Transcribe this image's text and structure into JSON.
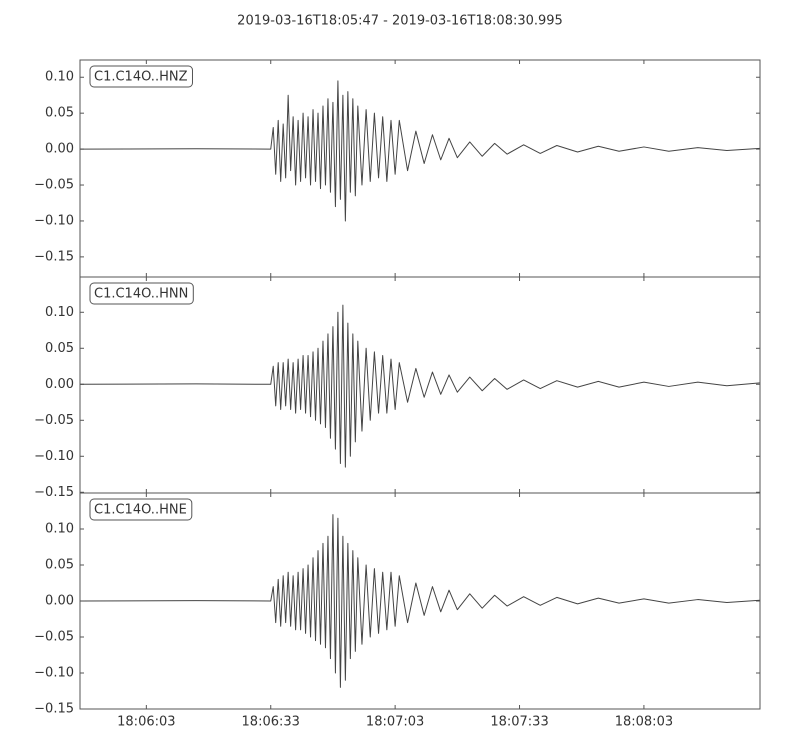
{
  "title": "2019-03-16T18:05:47  -  2019-03-16T18:08:30.995",
  "chart_data": [
    {
      "type": "line",
      "label": "C1.C14O..HNZ",
      "color": "#444444",
      "x": [
        65147,
        65175,
        65193,
        65193.6,
        65194.2,
        65194.8,
        65195.4,
        65196,
        65196.6,
        65197.2,
        65197.8,
        65198.4,
        65199,
        65199.6,
        65200.2,
        65200.8,
        65201.4,
        65202,
        65202.6,
        65203.2,
        65203.8,
        65204.4,
        65205,
        65205.6,
        65206.2,
        65206.8,
        65207.4,
        65208,
        65208.6,
        65209.2,
        65209.8,
        65210.4,
        65211,
        65211.6,
        65212.2,
        65212.8,
        65213.4,
        65214,
        65215,
        65216,
        65217,
        65218,
        65219,
        65220,
        65221,
        65222,
        65223,
        65224,
        65226,
        65228,
        65230,
        65232,
        65234,
        65236,
        65238,
        65241,
        65244,
        65247,
        65250,
        65254,
        65258,
        65262,
        65267,
        65272,
        65277,
        65283,
        65289,
        65296,
        65303,
        65310.995
      ],
      "values": [
        0,
        0.0005,
        0,
        0.03,
        -0.035,
        0.04,
        -0.045,
        0.035,
        -0.04,
        0.075,
        -0.03,
        0.045,
        -0.05,
        0.04,
        -0.045,
        0.05,
        -0.04,
        0.045,
        -0.05,
        0.055,
        -0.045,
        0.05,
        -0.055,
        0.06,
        -0.05,
        0.07,
        -0.06,
        0.065,
        -0.08,
        0.095,
        -0.07,
        0.075,
        -0.1,
        0.08,
        -0.06,
        0.07,
        -0.065,
        0.06,
        -0.05,
        0.055,
        -0.045,
        0.05,
        -0.04,
        0.045,
        -0.045,
        0.04,
        -0.035,
        0.04,
        -0.03,
        0.025,
        -0.02,
        0.02,
        -0.015,
        0.015,
        -0.012,
        0.01,
        -0.01,
        0.008,
        -0.007,
        0.006,
        -0.006,
        0.005,
        -0.004,
        0.004,
        -0.003,
        0.003,
        -0.003,
        0.002,
        -0.002,
        0.001
      ],
      "xlim": [
        65147,
        65310.995
      ],
      "ylim": [
        -0.178,
        0.124
      ],
      "yticks": [
        {
          "value": 0.1,
          "label": "0.10"
        },
        {
          "value": 0.05,
          "label": "0.05"
        },
        {
          "value": 0,
          "label": "0.00"
        },
        {
          "value": -0.05,
          "label": "−0.05"
        },
        {
          "value": -0.1,
          "label": "−0.10"
        },
        {
          "value": -0.15,
          "label": "−0.15"
        }
      ]
    },
    {
      "type": "line",
      "label": "C1.C14O..HNN",
      "color": "#444444",
      "x": [
        65147,
        65175,
        65193,
        65193.6,
        65194.2,
        65194.8,
        65195.4,
        65196,
        65196.6,
        65197.2,
        65197.8,
        65198.4,
        65199,
        65199.6,
        65200.2,
        65200.8,
        65201.4,
        65202,
        65202.6,
        65203.2,
        65203.8,
        65204.4,
        65205,
        65205.6,
        65206.2,
        65206.8,
        65207.4,
        65208,
        65208.6,
        65209.2,
        65209.8,
        65210.4,
        65211,
        65211.6,
        65212.2,
        65212.8,
        65213.4,
        65214,
        65215,
        65216,
        65217,
        65218,
        65219,
        65220,
        65221,
        65222,
        65223,
        65224,
        65226,
        65228,
        65230,
        65232,
        65234,
        65236,
        65238,
        65241,
        65244,
        65247,
        65250,
        65254,
        65258,
        65262,
        65267,
        65272,
        65277,
        65283,
        65289,
        65296,
        65303,
        65310.995
      ],
      "values": [
        0,
        0.0005,
        0,
        0.025,
        -0.03,
        0.03,
        -0.035,
        0.03,
        -0.03,
        0.035,
        -0.035,
        0.03,
        -0.04,
        0.035,
        -0.035,
        0.04,
        -0.04,
        0.04,
        -0.045,
        0.045,
        -0.05,
        0.05,
        -0.055,
        0.06,
        -0.06,
        0.07,
        -0.075,
        0.08,
        -0.09,
        0.1,
        -0.11,
        0.11,
        -0.115,
        0.085,
        -0.1,
        0.07,
        -0.08,
        0.06,
        -0.065,
        0.05,
        -0.05,
        0.045,
        -0.04,
        0.04,
        -0.04,
        0.035,
        -0.035,
        0.03,
        -0.025,
        0.022,
        -0.018,
        0.017,
        -0.014,
        0.013,
        -0.011,
        0.01,
        -0.009,
        0.008,
        -0.007,
        0.006,
        -0.006,
        0.005,
        -0.004,
        0.004,
        -0.004,
        0.003,
        -0.003,
        0.003,
        -0.002,
        0.002
      ],
      "xlim": [
        65147,
        65310.995
      ],
      "ylim": [
        -0.151,
        0.149
      ],
      "yticks": [
        {
          "value": 0.1,
          "label": "0.10"
        },
        {
          "value": 0.05,
          "label": "0.05"
        },
        {
          "value": 0,
          "label": "0.00"
        },
        {
          "value": -0.05,
          "label": "−0.05"
        },
        {
          "value": -0.1,
          "label": "−0.10"
        },
        {
          "value": -0.15,
          "label": "−0.15"
        }
      ]
    },
    {
      "type": "line",
      "label": "C1.C14O..HNE",
      "color": "#444444",
      "x": [
        65147,
        65175,
        65193,
        65193.6,
        65194.2,
        65194.8,
        65195.4,
        65196,
        65196.6,
        65197.2,
        65197.8,
        65198.4,
        65199,
        65199.6,
        65200.2,
        65200.8,
        65201.4,
        65202,
        65202.6,
        65203.2,
        65203.8,
        65204.4,
        65205,
        65205.6,
        65206.2,
        65206.8,
        65207.4,
        65208,
        65208.6,
        65209.2,
        65209.8,
        65210.4,
        65211,
        65211.6,
        65212.2,
        65212.8,
        65213.4,
        65214,
        65215,
        65216,
        65217,
        65218,
        65219,
        65220,
        65221,
        65222,
        65223,
        65224,
        65226,
        65228,
        65230,
        65232,
        65234,
        65236,
        65238,
        65241,
        65244,
        65247,
        65250,
        65254,
        65258,
        65262,
        65267,
        65272,
        65277,
        65283,
        65289,
        65296,
        65303,
        65310.995
      ],
      "values": [
        0,
        0.0005,
        0,
        0.02,
        -0.03,
        0.03,
        -0.035,
        0.035,
        -0.03,
        0.04,
        -0.035,
        0.035,
        -0.04,
        0.04,
        -0.04,
        0.045,
        -0.045,
        0.05,
        -0.05,
        0.06,
        -0.055,
        0.07,
        -0.06,
        0.08,
        -0.065,
        0.09,
        -0.08,
        0.12,
        -0.1,
        0.115,
        -0.12,
        0.09,
        -0.11,
        0.08,
        -0.08,
        0.07,
        -0.07,
        0.06,
        -0.06,
        0.05,
        -0.05,
        0.045,
        -0.045,
        0.04,
        -0.04,
        0.04,
        -0.035,
        0.035,
        -0.03,
        0.025,
        -0.02,
        0.02,
        -0.015,
        0.015,
        -0.012,
        0.01,
        -0.01,
        0.008,
        -0.007,
        0.006,
        -0.006,
        0.005,
        -0.004,
        0.004,
        -0.003,
        0.003,
        -0.003,
        0.002,
        -0.002,
        0.001
      ],
      "xlim": [
        65147,
        65310.995
      ],
      "ylim": [
        -0.15,
        0.15
      ],
      "yticks": [
        {
          "value": 0.1,
          "label": "0.10"
        },
        {
          "value": 0.05,
          "label": "0.05"
        },
        {
          "value": 0,
          "label": "0.00"
        },
        {
          "value": -0.05,
          "label": "−0.05"
        },
        {
          "value": -0.1,
          "label": "−0.10"
        },
        {
          "value": -0.15,
          "label": "−0.15"
        }
      ],
      "xticks": [
        {
          "value": 65163,
          "label": "18:06:03"
        },
        {
          "value": 65193,
          "label": "18:06:33"
        },
        {
          "value": 65223,
          "label": "18:07:03"
        },
        {
          "value": 65253,
          "label": "18:07:33"
        },
        {
          "value": 65283,
          "label": "18:08:03"
        }
      ]
    }
  ]
}
